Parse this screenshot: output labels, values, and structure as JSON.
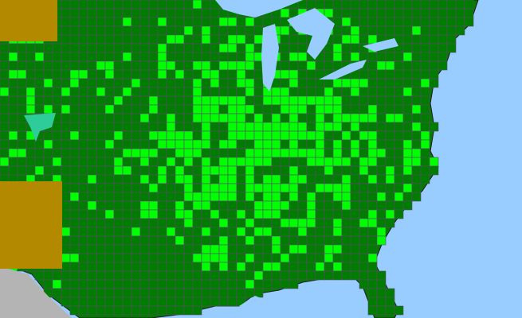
{
  "map": {
    "colors": {
      "base_county": "#007d00",
      "highlight_county": "#00ff00",
      "water": "#99ccff",
      "olive_region": "#b38900",
      "teal_region": "#2ecc99",
      "outside_area": "#b4b4b4",
      "county_border": "#5a4a6a",
      "state_border": "#1a1a1a"
    }
  }
}
